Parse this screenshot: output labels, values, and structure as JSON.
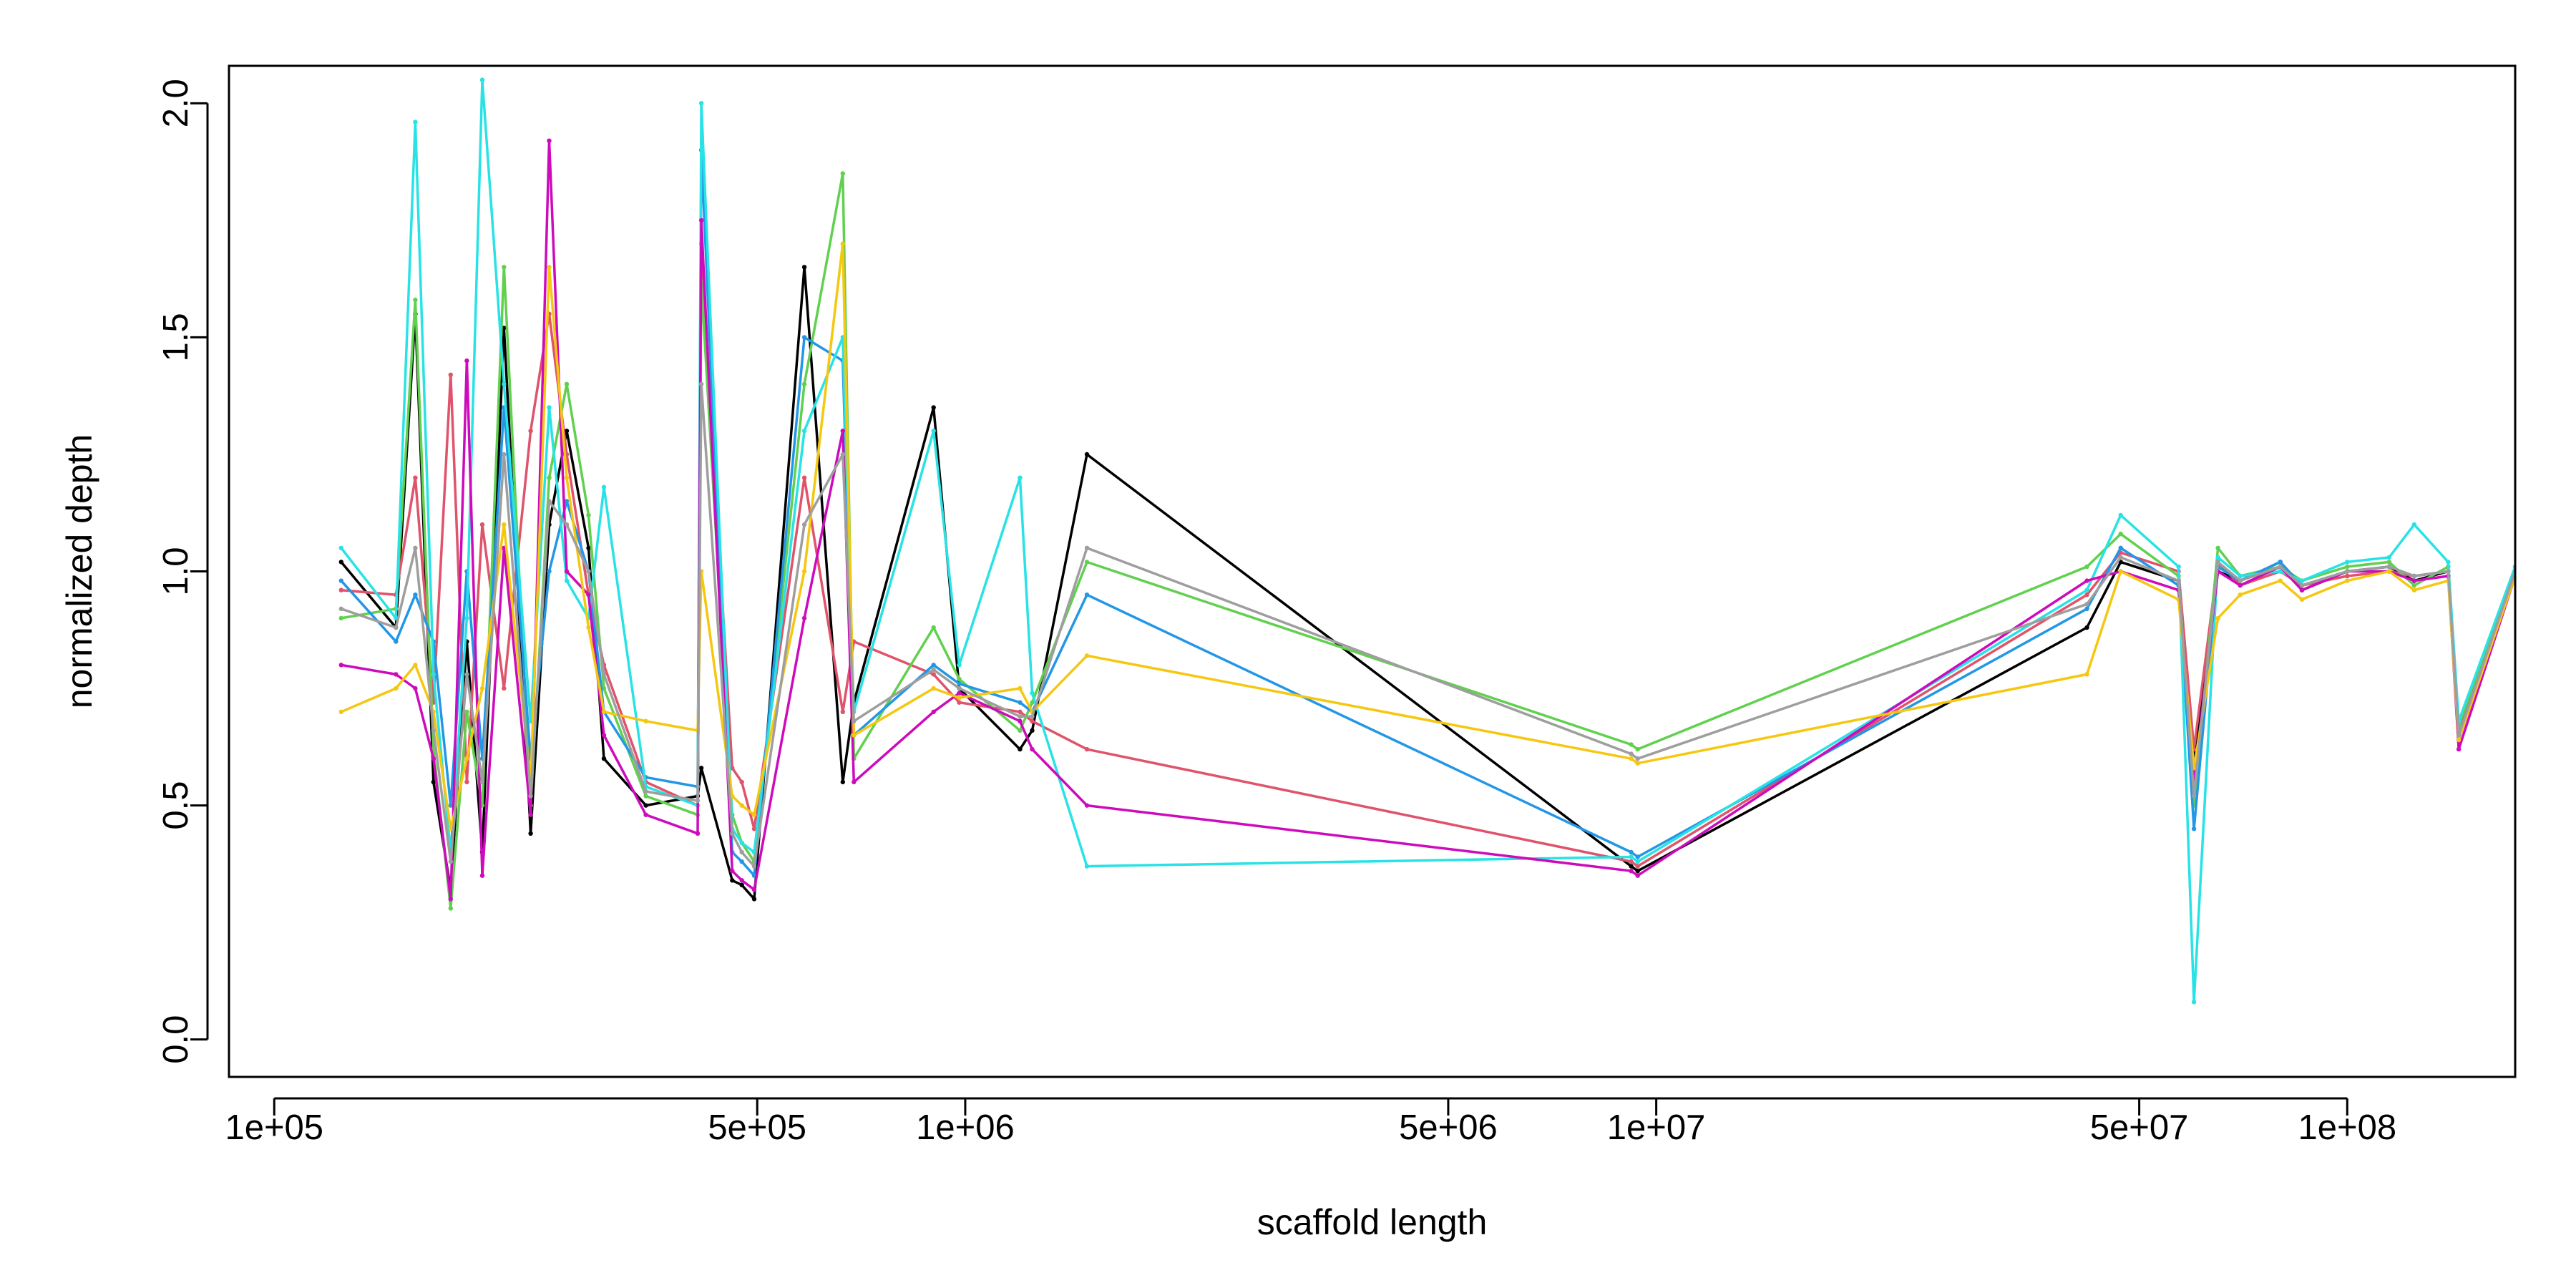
{
  "chart_data": {
    "type": "line",
    "title": "",
    "xlabel": "scaffold length",
    "ylabel": "normalized depth",
    "xscale": "log",
    "xlim": [
      86000,
      175000000
    ],
    "ylim": [
      -0.08,
      2.08
    ],
    "grid": false,
    "legend": "none",
    "x_ticks": [
      {
        "value": 100000,
        "label": "1e+05"
      },
      {
        "value": 500000,
        "label": "5e+05"
      },
      {
        "value": 1000000,
        "label": "1e+06"
      },
      {
        "value": 5000000,
        "label": "5e+06"
      },
      {
        "value": 10000000,
        "label": "1e+07"
      },
      {
        "value": 50000000,
        "label": "5e+07"
      },
      {
        "value": 100000000,
        "label": "1e+08"
      }
    ],
    "y_ticks": [
      {
        "value": 0.0,
        "label": "0.0"
      },
      {
        "value": 0.5,
        "label": "0.5"
      },
      {
        "value": 1.0,
        "label": "1.0"
      },
      {
        "value": 1.5,
        "label": "1.5"
      },
      {
        "value": 2.0,
        "label": "2.0"
      }
    ],
    "palette": [
      "#000000",
      "#DF536B",
      "#61D04F",
      "#2297E6",
      "#28E2E5",
      "#CD0BBC",
      "#F5C710",
      "#9E9E9E"
    ],
    "scaffold_lengths": [
      125000,
      150000,
      160000,
      170000,
      180000,
      190000,
      200000,
      215000,
      235000,
      250000,
      265000,
      285000,
      300000,
      345000,
      410000,
      415000,
      460000,
      475000,
      495000,
      585000,
      665000,
      690000,
      900000,
      980000,
      1200000,
      1250000,
      1500000,
      9200000,
      9400000,
      42000000,
      47000000,
      57000000,
      60000000,
      65000000,
      70000000,
      80000000,
      86000000,
      100000000,
      115000000,
      125000000,
      140000000,
      145000000,
      175000000
    ],
    "series": [
      {
        "values": [
          1.02,
          0.88,
          1.55,
          0.55,
          0.32,
          0.85,
          0.4,
          1.52,
          0.44,
          1.1,
          1.3,
          1.05,
          0.6,
          0.5,
          0.52,
          0.58,
          0.34,
          0.33,
          0.3,
          1.65,
          0.55,
          0.72,
          1.35,
          0.75,
          0.62,
          0.66,
          1.25,
          0.37,
          0.36,
          0.88,
          1.02,
          0.98,
          0.6,
          1.0,
          0.98,
          1.02,
          0.96,
          1.0,
          1.01,
          0.98,
          1.0,
          0.64,
          1.0
        ]
      },
      {
        "values": [
          0.96,
          0.95,
          1.2,
          0.72,
          1.42,
          0.55,
          1.1,
          0.75,
          1.3,
          1.55,
          1.25,
          0.95,
          0.8,
          0.55,
          0.5,
          1.7,
          0.58,
          0.55,
          0.45,
          1.2,
          0.7,
          0.85,
          0.78,
          0.72,
          0.7,
          0.68,
          0.62,
          0.38,
          0.37,
          0.95,
          1.04,
          1.0,
          0.62,
          1.02,
          0.97,
          1.0,
          0.97,
          0.99,
          1.0,
          0.99,
          1.0,
          0.66,
          1.0
        ]
      },
      {
        "values": [
          0.9,
          0.92,
          1.58,
          0.62,
          0.28,
          0.7,
          0.5,
          1.65,
          0.5,
          1.2,
          1.4,
          1.12,
          0.75,
          0.52,
          0.48,
          1.62,
          0.48,
          0.42,
          0.38,
          1.4,
          1.85,
          0.6,
          0.88,
          0.77,
          0.66,
          0.72,
          1.02,
          0.63,
          0.62,
          1.01,
          1.08,
          0.99,
          0.5,
          1.05,
          0.99,
          1.01,
          0.98,
          1.01,
          1.02,
          0.97,
          1.01,
          0.67,
          1.01
        ]
      },
      {
        "values": [
          0.98,
          0.85,
          0.95,
          0.85,
          0.5,
          1.0,
          0.6,
          1.35,
          0.6,
          1.0,
          1.15,
          1.0,
          0.7,
          0.56,
          0.54,
          1.9,
          0.4,
          0.38,
          0.35,
          1.5,
          1.45,
          0.65,
          0.8,
          0.76,
          0.72,
          0.7,
          0.95,
          0.4,
          0.39,
          0.92,
          1.05,
          0.97,
          0.45,
          1.01,
          0.98,
          1.02,
          0.97,
          1.0,
          1.01,
          0.99,
          1.0,
          0.65,
          1.0
        ]
      },
      {
        "values": [
          1.05,
          0.9,
          1.96,
          0.78,
          0.4,
          0.9,
          2.05,
          1.4,
          0.68,
          1.35,
          0.98,
          0.9,
          1.18,
          0.54,
          0.5,
          2.0,
          0.45,
          0.42,
          0.4,
          1.3,
          1.5,
          0.7,
          1.3,
          0.8,
          1.2,
          0.74,
          0.37,
          0.39,
          0.38,
          0.96,
          1.12,
          1.01,
          0.08,
          1.03,
          0.99,
          1.0,
          0.98,
          1.02,
          1.03,
          1.1,
          1.02,
          0.68,
          1.01
        ]
      },
      {
        "values": [
          0.8,
          0.78,
          0.75,
          0.6,
          0.3,
          1.45,
          0.35,
          1.05,
          0.48,
          1.92,
          1.0,
          0.95,
          0.65,
          0.48,
          0.44,
          1.75,
          0.36,
          0.34,
          0.32,
          0.9,
          1.3,
          0.55,
          0.7,
          0.74,
          0.68,
          0.62,
          0.5,
          0.36,
          0.35,
          0.98,
          1.0,
          0.96,
          0.55,
          1.0,
          0.97,
          1.01,
          0.96,
          1.0,
          1.0,
          0.98,
          0.99,
          0.62,
          0.99
        ]
      },
      {
        "values": [
          0.7,
          0.75,
          0.8,
          0.7,
          0.45,
          0.6,
          0.75,
          1.1,
          0.55,
          1.65,
          1.2,
          0.88,
          0.7,
          0.68,
          0.66,
          1.0,
          0.52,
          0.5,
          0.48,
          1.0,
          1.7,
          0.65,
          0.75,
          0.73,
          0.75,
          0.7,
          0.82,
          0.6,
          0.59,
          0.78,
          1.0,
          0.94,
          0.58,
          0.9,
          0.95,
          0.98,
          0.94,
          0.98,
          1.0,
          0.96,
          0.98,
          0.64,
          0.99
        ]
      },
      {
        "values": [
          0.92,
          0.88,
          1.05,
          0.66,
          0.38,
          0.78,
          0.55,
          1.25,
          0.52,
          1.15,
          1.1,
          1.0,
          0.78,
          0.53,
          0.51,
          1.4,
          0.44,
          0.4,
          0.37,
          1.1,
          1.25,
          0.68,
          0.79,
          0.75,
          0.69,
          0.69,
          1.05,
          0.61,
          0.6,
          0.93,
          1.03,
          0.98,
          0.52,
          1.02,
          0.98,
          1.01,
          0.97,
          1.0,
          1.01,
          0.99,
          1.0,
          0.65,
          1.0
        ]
      }
    ]
  }
}
